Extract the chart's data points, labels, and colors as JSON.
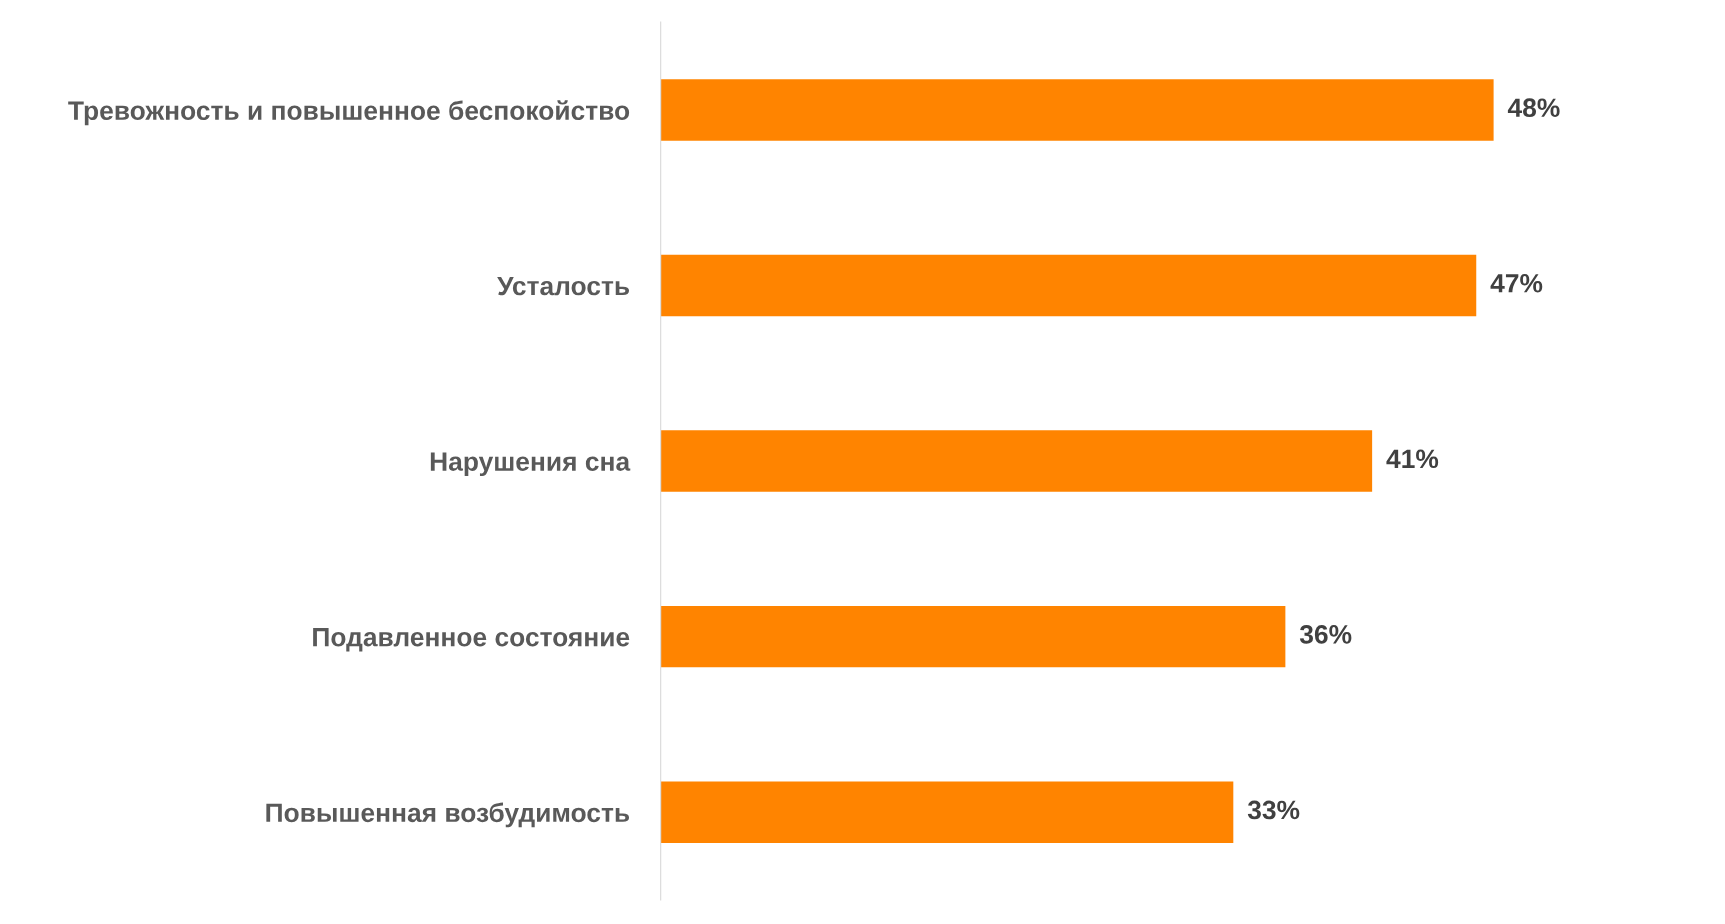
{
  "chart_data": {
    "type": "bar",
    "orientation": "horizontal",
    "categories": [
      "Тревожность и повышенное беспокойство",
      "Усталость",
      "Нарушения сна",
      "Подавленное состояние",
      "Повышенная возбудимость"
    ],
    "values": [
      48,
      47,
      41,
      36,
      33
    ],
    "value_labels": [
      "48%",
      "47%",
      "41%",
      "36%",
      "33%"
    ],
    "color": "#ff8400",
    "tick_labels": "y",
    "grid": false,
    "legend": false
  }
}
